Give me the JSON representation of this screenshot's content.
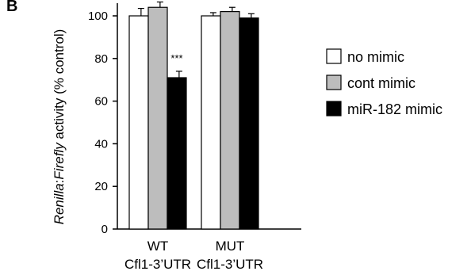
{
  "chart_data": {
    "type": "bar",
    "panel_label": "B",
    "ylabel_parts": [
      {
        "text": "Renilla",
        "italic": true
      },
      {
        "text": ":",
        "italic": false
      },
      {
        "text": "Firefly",
        "italic": true
      },
      {
        "text": " activity (% control)",
        "italic": false
      }
    ],
    "xlabel": "",
    "ylim": [
      0,
      110
    ],
    "yticks": [
      0,
      20,
      40,
      60,
      80,
      100
    ],
    "grid": false,
    "legend_position": "right",
    "categories": [
      {
        "line1": "WT",
        "line2": "Cfl1-3’UTR"
      },
      {
        "line1": "MUT",
        "line2": "Cfl1-3’UTR"
      }
    ],
    "series": [
      {
        "name": "no mimic",
        "color": "#ffffff",
        "values": [
          100,
          100
        ],
        "errors": [
          3.5,
          1.5
        ]
      },
      {
        "name": "cont mimic",
        "color": "#bdbdbd",
        "values": [
          104,
          102
        ],
        "errors": [
          2.5,
          2.0
        ]
      },
      {
        "name": "miR-182 mimic",
        "color": "#000000",
        "values": [
          71,
          99
        ],
        "errors": [
          3.0,
          2.0
        ]
      }
    ],
    "annotations": [
      {
        "text": "***",
        "category_index": 0,
        "series_index": 2
      }
    ]
  }
}
